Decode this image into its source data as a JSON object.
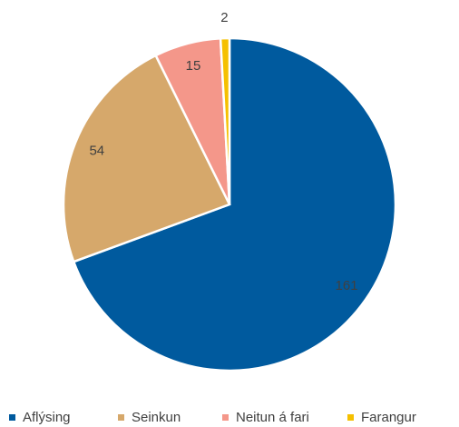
{
  "chart_data": {
    "type": "pie",
    "categories": [
      "Aflýsing",
      "Seinkun",
      "Neitun á fari",
      "Farangur"
    ],
    "values": [
      161,
      54,
      15,
      2
    ],
    "colors": [
      "#005a9e",
      "#d6a86b",
      "#f4978a",
      "#f5c000"
    ],
    "legend": "bottom"
  }
}
